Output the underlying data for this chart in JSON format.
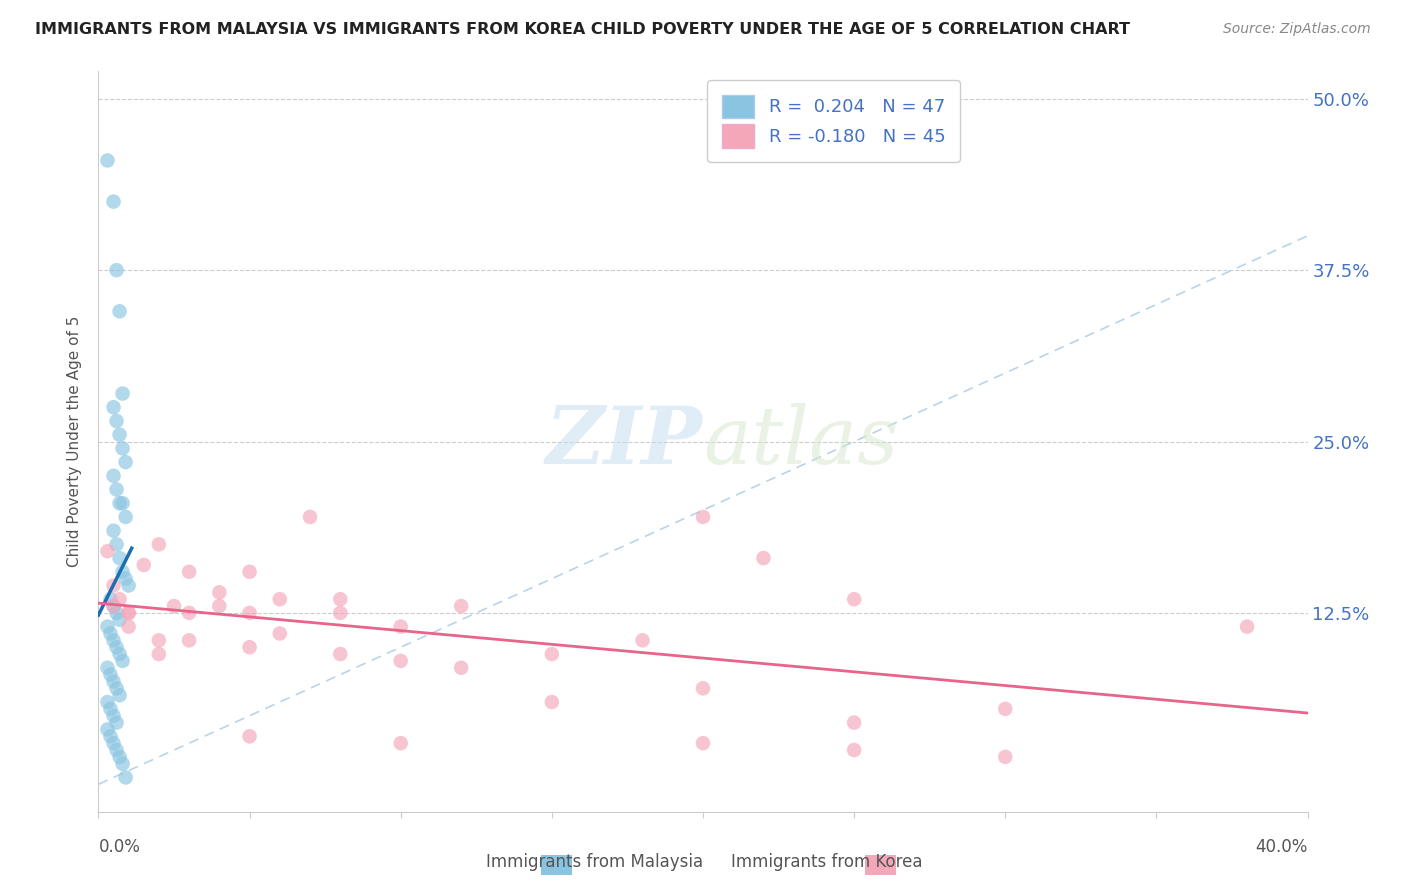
{
  "title": "IMMIGRANTS FROM MALAYSIA VS IMMIGRANTS FROM KOREA CHILD POVERTY UNDER THE AGE OF 5 CORRELATION CHART",
  "source": "Source: ZipAtlas.com",
  "ylabel": "Child Poverty Under the Age of 5",
  "ytick_labels": [
    "",
    "12.5%",
    "25.0%",
    "37.5%",
    "50.0%"
  ],
  "ytick_values": [
    0.0,
    0.125,
    0.25,
    0.375,
    0.5
  ],
  "xlim": [
    0.0,
    0.4
  ],
  "ylim": [
    -0.02,
    0.52
  ],
  "color_malaysia": "#89c4e1",
  "color_korea": "#f4a7b9",
  "color_malaysia_line": "#1a6faf",
  "color_korea_line": "#e8658a",
  "color_diagonal": "#b8d4ea",
  "watermark_zip": "ZIP",
  "watermark_atlas": "atlas",
  "malaysia_x": [
    0.003,
    0.005,
    0.006,
    0.007,
    0.008,
    0.005,
    0.006,
    0.007,
    0.008,
    0.009,
    0.005,
    0.006,
    0.007,
    0.008,
    0.009,
    0.005,
    0.006,
    0.007,
    0.008,
    0.009,
    0.01,
    0.004,
    0.005,
    0.006,
    0.007,
    0.003,
    0.004,
    0.005,
    0.006,
    0.007,
    0.008,
    0.003,
    0.004,
    0.005,
    0.006,
    0.007,
    0.003,
    0.004,
    0.005,
    0.006,
    0.003,
    0.004,
    0.005,
    0.006,
    0.007,
    0.008,
    0.009
  ],
  "malaysia_y": [
    0.455,
    0.425,
    0.375,
    0.345,
    0.285,
    0.275,
    0.265,
    0.255,
    0.245,
    0.235,
    0.225,
    0.215,
    0.205,
    0.205,
    0.195,
    0.185,
    0.175,
    0.165,
    0.155,
    0.15,
    0.145,
    0.135,
    0.13,
    0.125,
    0.12,
    0.115,
    0.11,
    0.105,
    0.1,
    0.095,
    0.09,
    0.085,
    0.08,
    0.075,
    0.07,
    0.065,
    0.06,
    0.055,
    0.05,
    0.045,
    0.04,
    0.035,
    0.03,
    0.025,
    0.02,
    0.015,
    0.005
  ],
  "korea_x": [
    0.003,
    0.005,
    0.007,
    0.01,
    0.015,
    0.02,
    0.025,
    0.03,
    0.04,
    0.05,
    0.06,
    0.07,
    0.08,
    0.01,
    0.02,
    0.03,
    0.04,
    0.05,
    0.06,
    0.08,
    0.1,
    0.12,
    0.15,
    0.18,
    0.2,
    0.22,
    0.25,
    0.005,
    0.01,
    0.02,
    0.03,
    0.05,
    0.08,
    0.1,
    0.12,
    0.15,
    0.2,
    0.25,
    0.3,
    0.05,
    0.1,
    0.2,
    0.25,
    0.3,
    0.38
  ],
  "korea_y": [
    0.17,
    0.145,
    0.135,
    0.125,
    0.16,
    0.175,
    0.13,
    0.155,
    0.13,
    0.155,
    0.135,
    0.195,
    0.135,
    0.115,
    0.105,
    0.125,
    0.14,
    0.125,
    0.11,
    0.125,
    0.115,
    0.13,
    0.095,
    0.105,
    0.195,
    0.165,
    0.135,
    0.13,
    0.125,
    0.095,
    0.105,
    0.1,
    0.095,
    0.09,
    0.085,
    0.06,
    0.07,
    0.045,
    0.055,
    0.035,
    0.03,
    0.03,
    0.025,
    0.02,
    0.115
  ]
}
